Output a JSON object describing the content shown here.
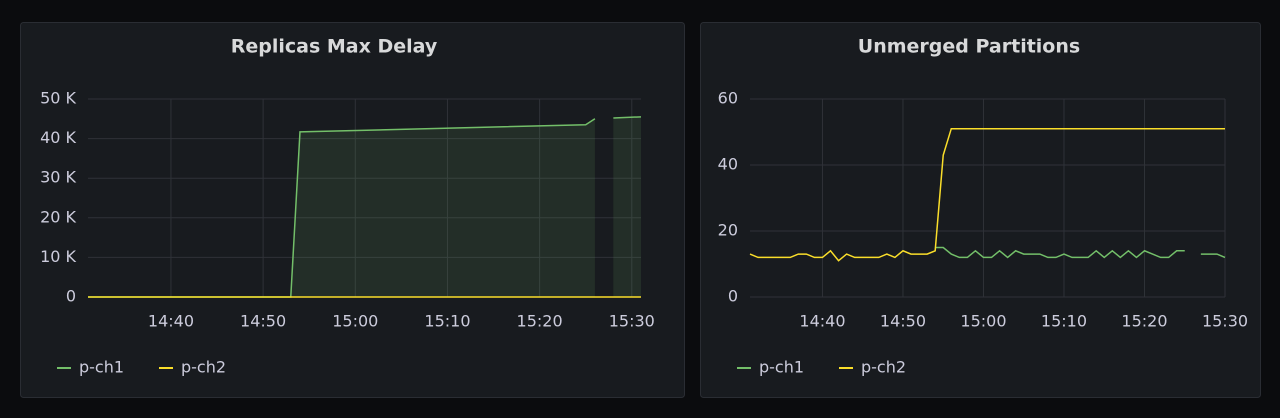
{
  "chart_data": [
    {
      "type": "line",
      "title": "Replicas Max Delay",
      "fill": true,
      "grid": true,
      "x": [
        "14:31",
        "14:53",
        "14:54",
        "15:25",
        "15:26",
        "15:27",
        "15:28",
        "15:31"
      ],
      "xlim": [
        "14:31",
        "15:31"
      ],
      "xticks": [
        "14:40",
        "14:50",
        "15:00",
        "15:10",
        "15:20",
        "15:30"
      ],
      "ylim": [
        0,
        50000
      ],
      "yticks": [
        0,
        {
          "value": 10000,
          "label": "10 K"
        },
        {
          "value": 20000,
          "label": "20 K"
        },
        {
          "value": 30000,
          "label": "30 K"
        },
        {
          "value": 40000,
          "label": "40 K"
        },
        {
          "value": 50000,
          "label": "50 K"
        }
      ],
      "series": [
        {
          "name": "p-ch1",
          "color": "#73bf69",
          "values": [
            0,
            0,
            41700,
            43500,
            45000,
            null,
            45200,
            45500
          ]
        },
        {
          "name": "p-ch2",
          "color": "#fade2a",
          "values": [
            0,
            0,
            0,
            0,
            0,
            0,
            0,
            0
          ]
        }
      ]
    },
    {
      "type": "line",
      "title": "Unmerged Partitions",
      "fill": false,
      "grid": true,
      "x": [
        "14:31",
        "14:32",
        "14:33",
        "14:34",
        "14:35",
        "14:36",
        "14:37",
        "14:38",
        "14:39",
        "14:40",
        "14:41",
        "14:42",
        "14:43",
        "14:44",
        "14:45",
        "14:46",
        "14:47",
        "14:48",
        "14:49",
        "14:50",
        "14:51",
        "14:52",
        "14:53",
        "14:54",
        "14:55",
        "14:56",
        "14:57",
        "14:58",
        "14:59",
        "15:00",
        "15:01",
        "15:02",
        "15:03",
        "15:04",
        "15:05",
        "15:06",
        "15:07",
        "15:08",
        "15:09",
        "15:10",
        "15:11",
        "15:12",
        "15:13",
        "15:14",
        "15:15",
        "15:16",
        "15:17",
        "15:18",
        "15:19",
        "15:20",
        "15:21",
        "15:22",
        "15:23",
        "15:24",
        "15:25",
        "15:26",
        "15:27",
        "15:28",
        "15:29",
        "15:30"
      ],
      "xlim": [
        "14:31",
        "15:30"
      ],
      "xticks": [
        "14:40",
        "14:50",
        "15:00",
        "15:10",
        "15:20",
        "15:30"
      ],
      "ylim": [
        0,
        60
      ],
      "yticks": [
        0,
        20,
        40,
        60
      ],
      "series": [
        {
          "name": "p-ch1",
          "color": "#73bf69",
          "values": [
            null,
            null,
            null,
            null,
            null,
            null,
            null,
            null,
            null,
            null,
            null,
            null,
            null,
            null,
            null,
            null,
            null,
            null,
            null,
            null,
            null,
            null,
            null,
            15,
            15,
            13,
            12,
            12,
            14,
            12,
            12,
            14,
            12,
            14,
            13,
            13,
            13,
            12,
            12,
            13,
            12,
            12,
            12,
            14,
            12,
            14,
            12,
            14,
            12,
            14,
            13,
            12,
            12,
            14,
            14,
            null,
            13,
            13,
            13,
            12
          ]
        },
        {
          "name": "p-ch2",
          "color": "#fade2a",
          "values": [
            13,
            12,
            12,
            12,
            12,
            12,
            13,
            13,
            12,
            12,
            14,
            11,
            13,
            12,
            12,
            12,
            12,
            13,
            12,
            14,
            13,
            13,
            13,
            14,
            43,
            51,
            51,
            51,
            51,
            51,
            51,
            51,
            51,
            51,
            51,
            51,
            51,
            51,
            51,
            51,
            51,
            51,
            51,
            51,
            51,
            51,
            51,
            51,
            51,
            51,
            51,
            51,
            51,
            51,
            51,
            51,
            51,
            51,
            51,
            51
          ]
        }
      ]
    }
  ]
}
